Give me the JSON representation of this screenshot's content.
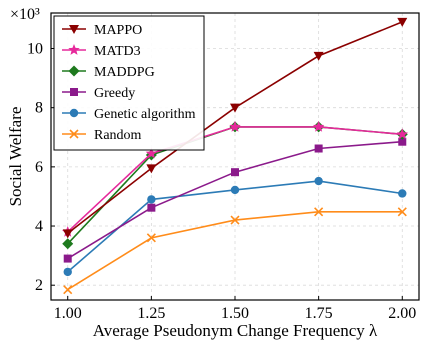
{
  "chart_data": {
    "type": "line",
    "xlabel": "Average Pseudonym Change Frequency λ",
    "ylabel": "Social Welfare",
    "y_multiplier": "×10³",
    "x": [
      1.0,
      1.25,
      1.5,
      1.75,
      2.0
    ],
    "x_tick_labels": [
      "1.00",
      "1.25",
      "1.50",
      "1.75",
      "2.00"
    ],
    "xlim": [
      0.95,
      2.05
    ],
    "y_ticks": [
      2,
      4,
      6,
      8,
      10
    ],
    "ylim": [
      1.5,
      11.2
    ],
    "grid": true,
    "legend_position": "top-left",
    "series": [
      {
        "name": "MAPPO",
        "values": [
          3.75,
          5.95,
          8.0,
          9.75,
          10.9
        ],
        "color": "#8b0000",
        "marker": "triangle-down"
      },
      {
        "name": "MATD3",
        "values": [
          3.8,
          6.45,
          7.35,
          7.35,
          7.1
        ],
        "color": "#e6299b",
        "marker": "star"
      },
      {
        "name": "MADDPG",
        "values": [
          3.4,
          6.4,
          7.35,
          7.35,
          7.1
        ],
        "color": "#1e7a1e",
        "marker": "diamond"
      },
      {
        "name": "Greedy",
        "values": [
          2.9,
          4.62,
          5.82,
          6.62,
          6.85
        ],
        "color": "#8b1a8b",
        "marker": "square"
      },
      {
        "name": "Genetic algorithm",
        "values": [
          2.45,
          4.9,
          5.22,
          5.52,
          5.1
        ],
        "color": "#2c7bb6",
        "marker": "circle"
      },
      {
        "name": "Random",
        "values": [
          1.85,
          3.6,
          4.2,
          4.48,
          4.48
        ],
        "color": "#ff8c1a",
        "marker": "x"
      }
    ]
  }
}
